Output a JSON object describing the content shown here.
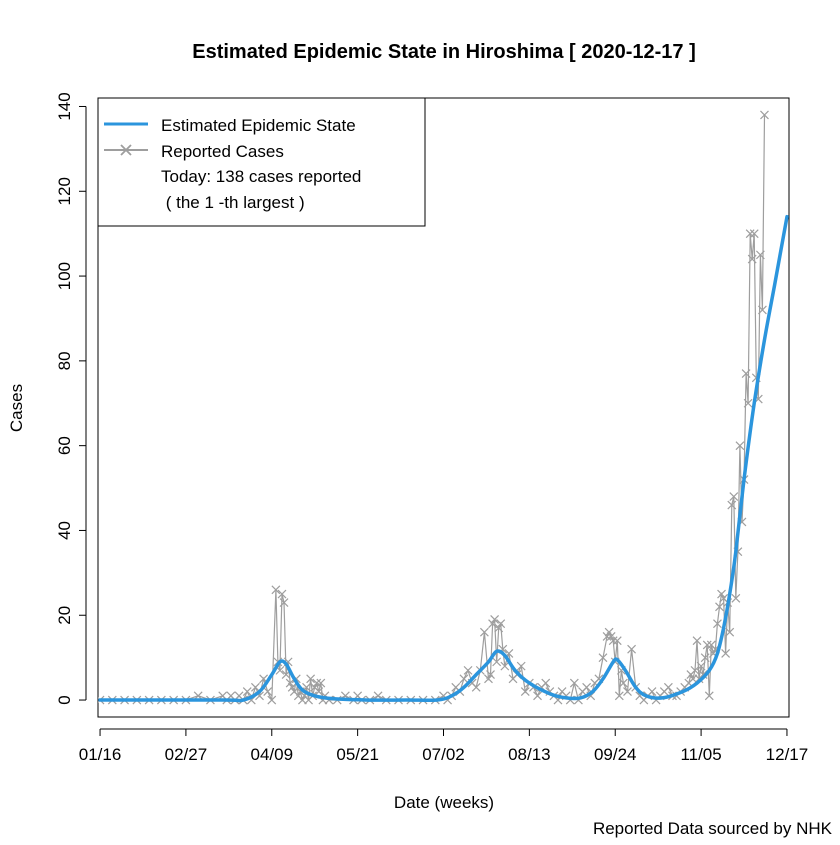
{
  "chart_data": {
    "type": "line",
    "title": "Estimated Epidemic State in Hiroshima [ 2020-12-17 ]",
    "xlabel": "Date (weeks)",
    "ylabel": "Cases",
    "xlim": [
      -1,
      337
    ],
    "ylim": [
      -4,
      142
    ],
    "x_ticks": [
      0,
      42,
      84,
      126,
      168,
      210,
      252,
      294,
      336
    ],
    "x_tick_labels": [
      "01/16",
      "02/27",
      "04/09",
      "05/21",
      "07/02",
      "08/13",
      "09/24",
      "11/05",
      "12/17"
    ],
    "y_ticks": [
      0,
      20,
      40,
      60,
      80,
      100,
      120,
      140
    ],
    "y_tick_labels": [
      "0",
      "20",
      "40",
      "60",
      "80",
      "100",
      "120",
      "140"
    ],
    "legend": {
      "position": "top-left",
      "entries": [
        "Estimated Epidemic State",
        "Reported Cases"
      ],
      "note_lines": [
        "Today: 138 cases reported",
        " ( the 1 -th largest )"
      ]
    },
    "source_note": "Reported Data sourced by NHK",
    "series": [
      {
        "name": "Estimated Epidemic State",
        "color": "#2b95dd",
        "style": "smooth-line",
        "points": [
          [
            0,
            0
          ],
          [
            60,
            0
          ],
          [
            70,
            0
          ],
          [
            78,
            2
          ],
          [
            84,
            6
          ],
          [
            88,
            9
          ],
          [
            91,
            8.5
          ],
          [
            95,
            5
          ],
          [
            100,
            2
          ],
          [
            110,
            0.5
          ],
          [
            130,
            0
          ],
          [
            150,
            0
          ],
          [
            165,
            0
          ],
          [
            172,
            1
          ],
          [
            178,
            3
          ],
          [
            184,
            6
          ],
          [
            190,
            9
          ],
          [
            194,
            11.5
          ],
          [
            198,
            10.5
          ],
          [
            203,
            7
          ],
          [
            210,
            4
          ],
          [
            220,
            1.5
          ],
          [
            228,
            0.5
          ],
          [
            235,
            0.5
          ],
          [
            241,
            2
          ],
          [
            246,
            5
          ],
          [
            251,
            9
          ],
          [
            253,
            9.5
          ],
          [
            257,
            7
          ],
          [
            262,
            3
          ],
          [
            267,
            1
          ],
          [
            275,
            0.5
          ],
          [
            285,
            2
          ],
          [
            292,
            4
          ],
          [
            298,
            7
          ],
          [
            302,
            11
          ],
          [
            305,
            17
          ],
          [
            308,
            25
          ],
          [
            311,
            35
          ],
          [
            315,
            52
          ],
          [
            320,
            70
          ],
          [
            325,
            85
          ],
          [
            330,
            98
          ],
          [
            336,
            114
          ]
        ]
      },
      {
        "name": "Reported Cases",
        "color": "#9e9e9e",
        "style": "line-with-x-markers",
        "points": [
          [
            0,
            0
          ],
          [
            6,
            0
          ],
          [
            12,
            0
          ],
          [
            18,
            0
          ],
          [
            24,
            0
          ],
          [
            30,
            0
          ],
          [
            36,
            0
          ],
          [
            42,
            0
          ],
          [
            48,
            1
          ],
          [
            54,
            0
          ],
          [
            60,
            1
          ],
          [
            62,
            0
          ],
          [
            64,
            1
          ],
          [
            66,
            0
          ],
          [
            68,
            1
          ],
          [
            70,
            0
          ],
          [
            72,
            2
          ],
          [
            74,
            0
          ],
          [
            76,
            3
          ],
          [
            78,
            1
          ],
          [
            80,
            5
          ],
          [
            82,
            2
          ],
          [
            84,
            0
          ],
          [
            86,
            26
          ],
          [
            87,
            9
          ],
          [
            88,
            7
          ],
          [
            89,
            25
          ],
          [
            90,
            23
          ],
          [
            91,
            6
          ],
          [
            92,
            9
          ],
          [
            93,
            4
          ],
          [
            94,
            3
          ],
          [
            95,
            2
          ],
          [
            96,
            5
          ],
          [
            97,
            1
          ],
          [
            98,
            2
          ],
          [
            99,
            0
          ],
          [
            100,
            1
          ],
          [
            101,
            3
          ],
          [
            102,
            0
          ],
          [
            103,
            5
          ],
          [
            104,
            1
          ],
          [
            105,
            3
          ],
          [
            106,
            4
          ],
          [
            107,
            2
          ],
          [
            108,
            4
          ],
          [
            109,
            0
          ],
          [
            110,
            1
          ],
          [
            112,
            0
          ],
          [
            116,
            0
          ],
          [
            120,
            1
          ],
          [
            124,
            0
          ],
          [
            126,
            1
          ],
          [
            128,
            0
          ],
          [
            132,
            0
          ],
          [
            136,
            1
          ],
          [
            140,
            0
          ],
          [
            146,
            0
          ],
          [
            152,
            0
          ],
          [
            158,
            0
          ],
          [
            164,
            0
          ],
          [
            168,
            1
          ],
          [
            170,
            0
          ],
          [
            172,
            1
          ],
          [
            174,
            3
          ],
          [
            176,
            2
          ],
          [
            178,
            5
          ],
          [
            180,
            7
          ],
          [
            182,
            4
          ],
          [
            184,
            3
          ],
          [
            186,
            7
          ],
          [
            188,
            16
          ],
          [
            190,
            5
          ],
          [
            191,
            6
          ],
          [
            192,
            18
          ],
          [
            193,
            19
          ],
          [
            194,
            9
          ],
          [
            195,
            17
          ],
          [
            196,
            18
          ],
          [
            197,
            12
          ],
          [
            198,
            8
          ],
          [
            200,
            11
          ],
          [
            202,
            5
          ],
          [
            204,
            6
          ],
          [
            206,
            8
          ],
          [
            208,
            2
          ],
          [
            210,
            4
          ],
          [
            212,
            3
          ],
          [
            214,
            1
          ],
          [
            216,
            3
          ],
          [
            218,
            4
          ],
          [
            220,
            2
          ],
          [
            222,
            1
          ],
          [
            224,
            0
          ],
          [
            226,
            2
          ],
          [
            228,
            1
          ],
          [
            230,
            0
          ],
          [
            232,
            4
          ],
          [
            234,
            0
          ],
          [
            236,
            2
          ],
          [
            238,
            3
          ],
          [
            240,
            1
          ],
          [
            242,
            4
          ],
          [
            244,
            5
          ],
          [
            246,
            10
          ],
          [
            248,
            15
          ],
          [
            249,
            16
          ],
          [
            250,
            15
          ],
          [
            251,
            14
          ],
          [
            252,
            9
          ],
          [
            253,
            14
          ],
          [
            254,
            1
          ],
          [
            255,
            7
          ],
          [
            256,
            4
          ],
          [
            258,
            2
          ],
          [
            260,
            12
          ],
          [
            262,
            3
          ],
          [
            264,
            1
          ],
          [
            266,
            0
          ],
          [
            268,
            1
          ],
          [
            270,
            2
          ],
          [
            272,
            0
          ],
          [
            274,
            1
          ],
          [
            276,
            2
          ],
          [
            278,
            3
          ],
          [
            280,
            1
          ],
          [
            282,
            1
          ],
          [
            284,
            2
          ],
          [
            286,
            3
          ],
          [
            288,
            4
          ],
          [
            289,
            6
          ],
          [
            290,
            5
          ],
          [
            291,
            7
          ],
          [
            292,
            14
          ],
          [
            293,
            5
          ],
          [
            294,
            8
          ],
          [
            295,
            6
          ],
          [
            296,
            10
          ],
          [
            297,
            13
          ],
          [
            298,
            1
          ],
          [
            299,
            13
          ],
          [
            300,
            11
          ],
          [
            301,
            12
          ],
          [
            302,
            18
          ],
          [
            303,
            22
          ],
          [
            304,
            25
          ],
          [
            305,
            24
          ],
          [
            306,
            11
          ],
          [
            307,
            23
          ],
          [
            308,
            16
          ],
          [
            309,
            46
          ],
          [
            310,
            48
          ],
          [
            311,
            24
          ],
          [
            312,
            35
          ],
          [
            313,
            60
          ],
          [
            314,
            42
          ],
          [
            315,
            52
          ],
          [
            316,
            77
          ],
          [
            317,
            70
          ],
          [
            318,
            110
          ],
          [
            319,
            104
          ],
          [
            320,
            110
          ],
          [
            321,
            76
          ],
          [
            322,
            71
          ],
          [
            323,
            105
          ],
          [
            324,
            92
          ],
          [
            325,
            138
          ]
        ]
      }
    ]
  }
}
